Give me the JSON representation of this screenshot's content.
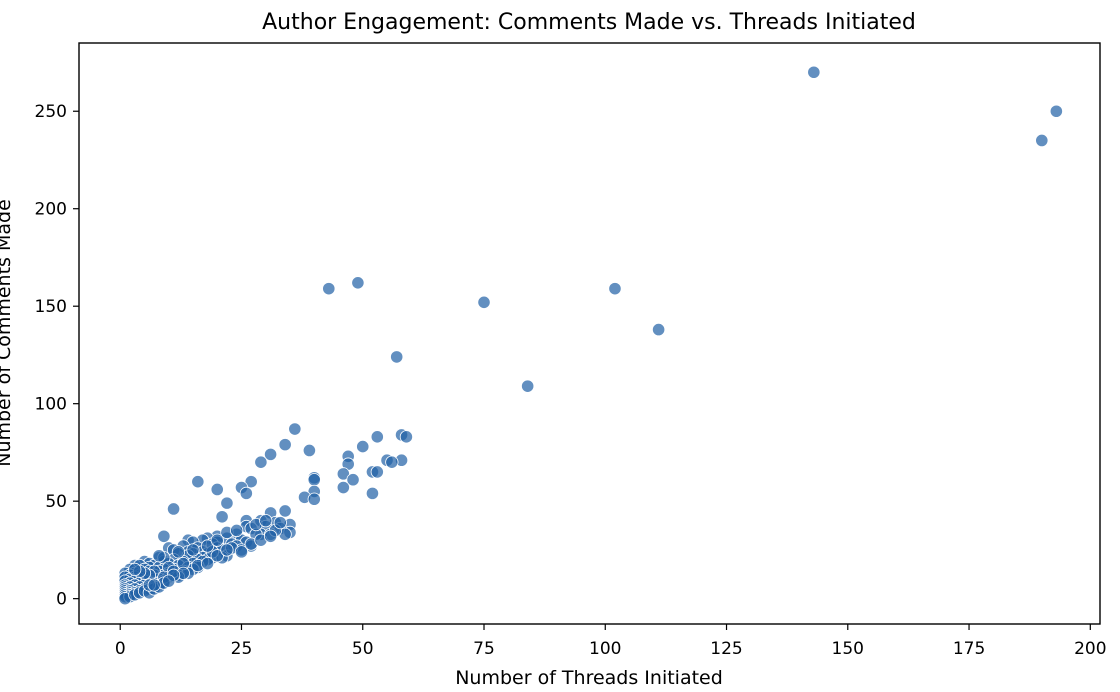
{
  "chart_data": {
    "type": "scatter",
    "title": "Author Engagement: Comments Made vs. Threads Initiated",
    "xlabel": "Number of Threads Initiated",
    "ylabel": "Number of Comments Made",
    "xlim": [
      -8.5,
      202
    ],
    "ylim": [
      -13,
      285
    ],
    "xticks": [
      0,
      25,
      50,
      75,
      100,
      125,
      150,
      175,
      200
    ],
    "yticks": [
      0,
      50,
      100,
      150,
      200,
      250
    ],
    "grid": false,
    "legend": "none",
    "marker_color": "#1f5fa5",
    "points": [
      [
        143,
        270
      ],
      [
        193,
        250
      ],
      [
        190,
        235
      ],
      [
        49,
        162
      ],
      [
        43,
        159
      ],
      [
        102,
        159
      ],
      [
        75,
        152
      ],
      [
        111,
        138
      ],
      [
        57,
        124
      ],
      [
        84,
        109
      ],
      [
        36,
        87
      ],
      [
        58,
        84
      ],
      [
        59,
        83
      ],
      [
        53,
        83
      ],
      [
        34,
        79
      ],
      [
        50,
        78
      ],
      [
        39,
        76
      ],
      [
        31,
        74
      ],
      [
        47,
        73
      ],
      [
        55,
        71
      ],
      [
        58,
        71
      ],
      [
        29,
        70
      ],
      [
        56,
        70
      ],
      [
        47,
        69
      ],
      [
        52,
        65
      ],
      [
        53,
        65
      ],
      [
        46,
        64
      ],
      [
        40,
        62
      ],
      [
        40,
        61
      ],
      [
        48,
        61
      ],
      [
        16,
        60
      ],
      [
        27,
        60
      ],
      [
        25,
        57
      ],
      [
        46,
        57
      ],
      [
        20,
        56
      ],
      [
        26,
        54
      ],
      [
        52,
        54
      ],
      [
        40,
        55
      ],
      [
        38,
        52
      ],
      [
        40,
        51
      ],
      [
        22,
        49
      ],
      [
        11,
        46
      ],
      [
        31,
        44
      ],
      [
        34,
        45
      ],
      [
        21,
        42
      ],
      [
        26,
        40
      ],
      [
        29,
        40
      ],
      [
        32,
        39
      ],
      [
        35,
        38
      ],
      [
        26,
        37
      ],
      [
        30,
        37
      ],
      [
        33,
        36
      ],
      [
        27,
        36
      ],
      [
        35,
        34
      ],
      [
        29,
        33
      ],
      [
        24,
        33
      ],
      [
        9,
        32
      ],
      [
        20,
        32
      ],
      [
        18,
        31
      ],
      [
        31,
        33
      ],
      [
        34,
        33
      ],
      [
        14,
        30
      ],
      [
        17,
        30
      ],
      [
        22,
        31
      ],
      [
        25,
        30
      ],
      [
        15,
        29
      ],
      [
        20,
        29
      ],
      [
        19,
        28
      ],
      [
        23,
        28
      ],
      [
        26,
        29
      ],
      [
        10,
        26
      ],
      [
        13,
        27
      ],
      [
        16,
        26
      ],
      [
        11,
        25
      ],
      [
        20,
        26
      ],
      [
        24,
        27
      ],
      [
        27,
        27
      ],
      [
        14,
        24
      ],
      [
        17,
        24
      ],
      [
        21,
        25
      ],
      [
        25,
        25
      ],
      [
        12,
        23
      ],
      [
        15,
        23
      ],
      [
        18,
        23
      ],
      [
        22,
        22
      ],
      [
        8,
        21
      ],
      [
        14,
        22
      ],
      [
        17,
        21
      ],
      [
        19,
        21
      ],
      [
        21,
        21
      ],
      [
        5,
        19
      ],
      [
        6,
        18
      ],
      [
        9,
        19
      ],
      [
        11,
        20
      ],
      [
        16,
        20
      ],
      [
        18,
        20
      ],
      [
        13,
        19
      ],
      [
        3,
        17
      ],
      [
        4,
        17
      ],
      [
        7,
        17
      ],
      [
        10,
        18
      ],
      [
        15,
        18
      ],
      [
        17,
        19
      ],
      [
        6,
        16
      ],
      [
        8,
        16
      ],
      [
        12,
        17
      ],
      [
        14,
        16
      ],
      [
        2,
        15
      ],
      [
        5,
        15
      ],
      [
        9,
        15
      ],
      [
        11,
        15
      ],
      [
        16,
        16
      ],
      [
        1,
        13
      ],
      [
        3,
        13
      ],
      [
        6,
        14
      ],
      [
        8,
        14
      ],
      [
        10,
        13
      ],
      [
        13,
        14
      ],
      [
        15,
        15
      ],
      [
        2,
        12
      ],
      [
        4,
        12
      ],
      [
        7,
        12
      ],
      [
        9,
        12
      ],
      [
        12,
        12
      ],
      [
        14,
        13
      ],
      [
        1,
        11
      ],
      [
        3,
        11
      ],
      [
        5,
        11
      ],
      [
        7,
        10
      ],
      [
        10,
        11
      ],
      [
        12,
        11
      ],
      [
        2,
        10
      ],
      [
        4,
        10
      ],
      [
        6,
        9
      ],
      [
        8,
        10
      ],
      [
        1,
        9
      ],
      [
        3,
        9
      ],
      [
        5,
        9
      ],
      [
        9,
        9
      ],
      [
        2,
        8
      ],
      [
        4,
        8
      ],
      [
        7,
        8
      ],
      [
        1,
        7
      ],
      [
        3,
        7
      ],
      [
        5,
        7
      ],
      [
        8,
        7
      ],
      [
        1,
        6
      ],
      [
        2,
        6
      ],
      [
        4,
        6
      ],
      [
        6,
        6
      ],
      [
        1,
        5
      ],
      [
        3,
        5
      ],
      [
        5,
        5
      ],
      [
        7,
        6
      ],
      [
        1,
        4
      ],
      [
        2,
        4
      ],
      [
        4,
        4
      ],
      [
        6,
        5
      ],
      [
        1,
        3
      ],
      [
        2,
        3
      ],
      [
        3,
        3
      ],
      [
        1,
        2
      ],
      [
        2,
        2
      ],
      [
        1,
        1
      ],
      [
        2,
        1
      ],
      [
        1,
        0
      ],
      [
        3,
        2
      ],
      [
        9,
        21
      ],
      [
        8,
        22
      ],
      [
        12,
        24
      ],
      [
        28,
        33
      ],
      [
        32,
        35
      ],
      [
        23,
        26
      ],
      [
        19,
        24
      ],
      [
        13,
        18
      ],
      [
        10,
        16
      ],
      [
        7,
        14
      ],
      [
        6,
        12
      ],
      [
        5,
        13
      ],
      [
        4,
        14
      ],
      [
        3,
        15
      ],
      [
        15,
        25
      ],
      [
        18,
        27
      ],
      [
        20,
        30
      ],
      [
        22,
        34
      ],
      [
        24,
        35
      ],
      [
        28,
        38
      ],
      [
        30,
        40
      ],
      [
        33,
        39
      ],
      [
        11,
        14
      ],
      [
        13,
        13
      ],
      [
        16,
        17
      ],
      [
        18,
        18
      ],
      [
        20,
        22
      ],
      [
        22,
        25
      ],
      [
        25,
        24
      ],
      [
        27,
        28
      ],
      [
        29,
        30
      ],
      [
        31,
        32
      ],
      [
        9,
        11
      ],
      [
        11,
        12
      ],
      [
        4,
        3
      ],
      [
        5,
        4
      ],
      [
        6,
        3
      ],
      [
        7,
        5
      ],
      [
        8,
        6
      ],
      [
        9,
        8
      ],
      [
        10,
        9
      ],
      [
        6,
        7
      ],
      [
        7,
        7
      ]
    ]
  }
}
